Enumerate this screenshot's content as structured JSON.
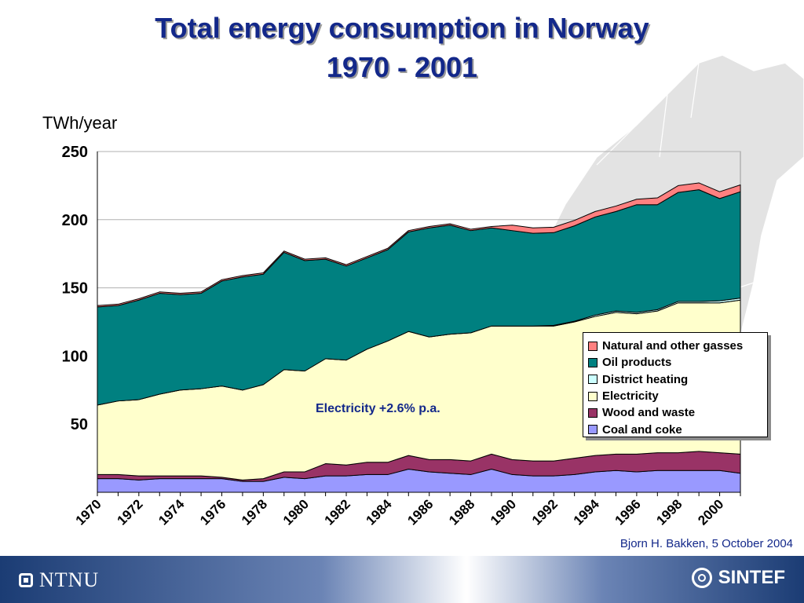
{
  "slide": {
    "title_line1": "Total energy consumption in Norway",
    "title_line2": "1970 - 2001",
    "unit_label": "TWh/year",
    "annotation": "Electricity +2.6% p.a.",
    "credit": "Bjorn H. Bakken, 5 October 2004"
  },
  "footer": {
    "left_logo": "NTNU",
    "right_logo": "SINTEF"
  },
  "colors": {
    "title": "#13288a",
    "Coal and coke": "#9999ff",
    "Wood and waste": "#993366",
    "Electricity": "#ffffcc",
    "District heating": "#ccffff",
    "Oil products": "#008080",
    "Natural and other gasses": "#ff8080"
  },
  "chart_data": {
    "type": "area",
    "stacked": true,
    "title": "Total energy consumption in Norway 1970 - 2001",
    "ylabel": "TWh/year",
    "xlabel": "",
    "ylim": [
      0,
      250
    ],
    "yticks": [
      50,
      100,
      150,
      200,
      250
    ],
    "xticks": [
      "1970",
      "1972",
      "1974",
      "1976",
      "1978",
      "1980",
      "1982",
      "1984",
      "1986",
      "1988",
      "1990",
      "1992",
      "1994",
      "1996",
      "1998",
      "2000"
    ],
    "grid": "horizontal",
    "legend_position": "right",
    "x": [
      1970,
      1971,
      1972,
      1973,
      1974,
      1975,
      1976,
      1977,
      1978,
      1979,
      1980,
      1981,
      1982,
      1983,
      1984,
      1985,
      1986,
      1987,
      1988,
      1989,
      1990,
      1991,
      1992,
      1993,
      1994,
      1995,
      1996,
      1997,
      1998,
      1999,
      2000,
      2001
    ],
    "series": [
      {
        "name": "Coal and coke",
        "values": [
          10,
          10,
          9,
          10,
          10,
          10,
          10,
          8,
          8,
          11,
          10,
          12,
          12,
          13,
          13,
          17,
          15,
          14,
          13,
          17,
          13,
          12,
          12,
          13,
          15,
          16,
          15,
          16,
          16,
          16,
          16,
          14
        ]
      },
      {
        "name": "Wood and waste",
        "values": [
          3,
          3,
          3,
          2,
          2,
          2,
          1,
          1,
          2,
          4,
          5,
          9,
          8,
          9,
          9,
          10,
          9,
          10,
          10,
          11,
          11,
          11,
          11,
          12,
          12,
          12,
          13,
          13,
          13,
          14,
          13,
          14
        ]
      },
      {
        "name": "Electricity",
        "values": [
          51,
          54,
          56,
          60,
          63,
          64,
          67,
          66,
          69,
          75,
          74,
          77,
          77,
          83,
          89,
          91,
          90,
          92,
          94,
          94,
          98,
          99,
          99,
          100,
          102,
          104,
          103,
          104,
          110,
          109,
          110,
          113
        ]
      },
      {
        "name": "District heating",
        "values": [
          0,
          0,
          0,
          0,
          0,
          0,
          0,
          0,
          0,
          0,
          0,
          0,
          0,
          0,
          0,
          0,
          0,
          0,
          0,
          0,
          0,
          0,
          0.5,
          0.5,
          1,
          1,
          1,
          1,
          1,
          1,
          1.5,
          1.5
        ]
      },
      {
        "name": "Oil products",
        "values": [
          72,
          70,
          73,
          74,
          70,
          70,
          77,
          83,
          81,
          86,
          81,
          73,
          69,
          67,
          67,
          73,
          80,
          80,
          75,
          72,
          70,
          68,
          68,
          70,
          72,
          73,
          79,
          77,
          80,
          82,
          75,
          78
        ]
      },
      {
        "name": "Natural and other gasses",
        "values": [
          1,
          1,
          1,
          1,
          1,
          1,
          1,
          1,
          1,
          1,
          1,
          1,
          1,
          1,
          1,
          1,
          1,
          1,
          1,
          1,
          4,
          4,
          4,
          4,
          4,
          4,
          4,
          5,
          5,
          5,
          5,
          5
        ]
      }
    ]
  },
  "legend": {
    "items": [
      "Natural and other gasses",
      "Oil products",
      "District heating",
      "Electricity",
      "Wood and waste",
      "Coal and coke"
    ]
  }
}
